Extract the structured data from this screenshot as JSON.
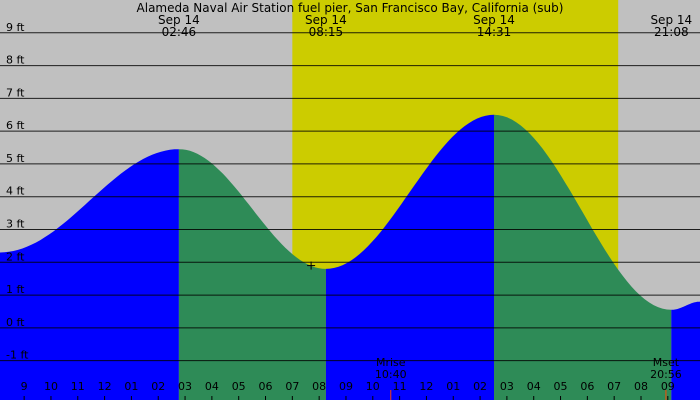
{
  "chart_data": {
    "type": "area",
    "title": "Alameda Naval Air Station fuel pier, San Francisco Bay, California (sub)",
    "ylim": [
      -2.2,
      10
    ],
    "yticks": [
      -1,
      0,
      1,
      2,
      3,
      4,
      5,
      6,
      7,
      8,
      9
    ],
    "ytick_labels": [
      "-1 ft",
      "0 ft",
      "1 ft",
      "2 ft",
      "3 ft",
      "4 ft",
      "5 ft",
      "6 ft",
      "7 ft",
      "8 ft",
      "9 ft"
    ],
    "xlim": [
      -3.9,
      22.2
    ],
    "hour_ticks": [
      -3,
      -2,
      -1,
      0,
      1,
      2,
      3,
      4,
      5,
      6,
      7,
      8,
      9,
      10,
      11,
      12,
      13,
      14,
      15,
      16,
      17,
      18,
      19,
      20,
      21
    ],
    "hour_labels": [
      "9",
      "10",
      "11",
      "12",
      "01",
      "02",
      "03",
      "04",
      "05",
      "06",
      "07",
      "08",
      "09",
      "10",
      "11",
      "12",
      "01",
      "02",
      "03",
      "04",
      "05",
      "06",
      "07",
      "08",
      "09"
    ],
    "grid": true,
    "daylight": {
      "start_hour": 7.0,
      "end_hour": 19.15
    },
    "extremes": [
      {
        "date": "Sep 14",
        "time": "02:46",
        "hour": 2.77,
        "height": 5.45,
        "type": "high"
      },
      {
        "date": "Sep 14",
        "time": "08:15",
        "hour": 8.25,
        "height": 1.8,
        "type": "low"
      },
      {
        "date": "Sep 14",
        "time": "14:31",
        "hour": 14.52,
        "height": 6.5,
        "type": "high"
      },
      {
        "date": "Sep 14",
        "time": "21:08",
        "hour": 21.13,
        "height": 0.55,
        "type": "low"
      }
    ],
    "start_point": {
      "hour": -3.9,
      "height": 2.3
    },
    "end_point": {
      "hour": 22.2,
      "height": 0.8
    },
    "current": {
      "hour": 7.7,
      "height": 1.9
    },
    "moon": [
      {
        "label": "Mrise",
        "time": "10:40",
        "hour": 10.67
      },
      {
        "label": "Mset",
        "time": "20:56",
        "hour": 20.93
      }
    ],
    "colors": {
      "background": "#c0c0c0",
      "daylight": "#cccc00",
      "rising": "#0000ff",
      "falling": "#2e8b57",
      "gridline": "#000000",
      "current_marker": "#000000",
      "moon_marker": "#ff4500"
    }
  }
}
